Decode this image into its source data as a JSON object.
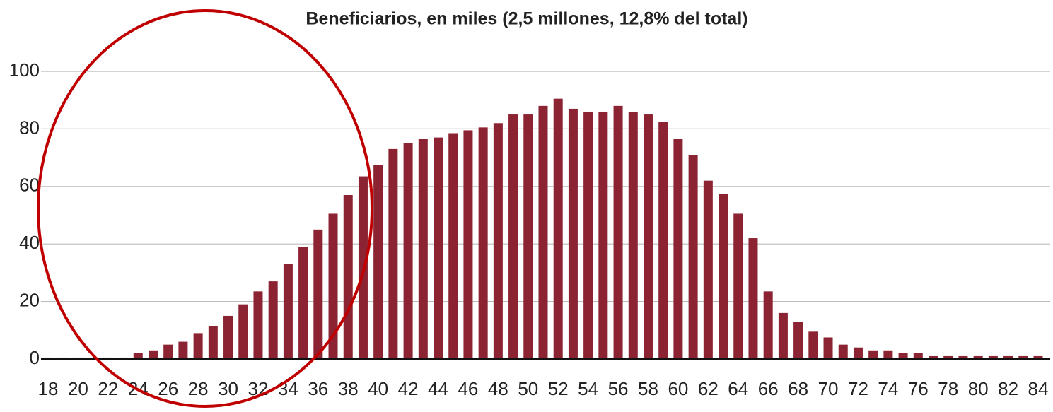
{
  "chart_data": {
    "type": "bar",
    "title": "Beneficiarios, en miles (2,5 millones, 12,8% del total)",
    "categories": [
      "18",
      null,
      "20",
      null,
      "22",
      null,
      "24",
      null,
      "26",
      null,
      "28",
      null,
      "30",
      null,
      "32",
      null,
      "34",
      null,
      "36",
      null,
      "38",
      null,
      "40",
      null,
      "42",
      null,
      "44",
      null,
      "46",
      null,
      "48",
      null,
      "50",
      null,
      "52",
      null,
      "54",
      null,
      "56",
      null,
      "58",
      null,
      "60",
      null,
      "62",
      null,
      "64",
      null,
      "66",
      null,
      "68",
      null,
      "70",
      null,
      "72",
      null,
      "74",
      null,
      "76",
      null,
      "78",
      null,
      "80",
      null,
      "82",
      null,
      "84"
    ],
    "values": [
      0.5,
      0.5,
      0.5,
      0,
      0.5,
      0.5,
      2,
      3,
      5,
      6,
      9,
      11.5,
      15,
      19,
      23.5,
      27,
      33,
      39,
      45,
      50.5,
      57,
      63.5,
      67.5,
      73,
      75,
      76.5,
      77,
      78.5,
      79.5,
      80.5,
      82,
      85,
      85,
      88,
      90.5,
      87,
      86,
      86,
      88,
      86,
      85,
      82.5,
      76.5,
      71,
      62,
      57.5,
      50.5,
      42,
      23.5,
      16,
      13,
      9.5,
      7.5,
      5,
      4,
      3,
      3,
      2,
      2,
      1,
      1,
      1,
      1,
      1,
      1,
      1,
      1
    ],
    "color": "#8b2332",
    "ylim": [
      0,
      100
    ],
    "yticks": [
      0,
      20,
      40,
      60,
      80,
      100
    ],
    "grid": true
  }
}
